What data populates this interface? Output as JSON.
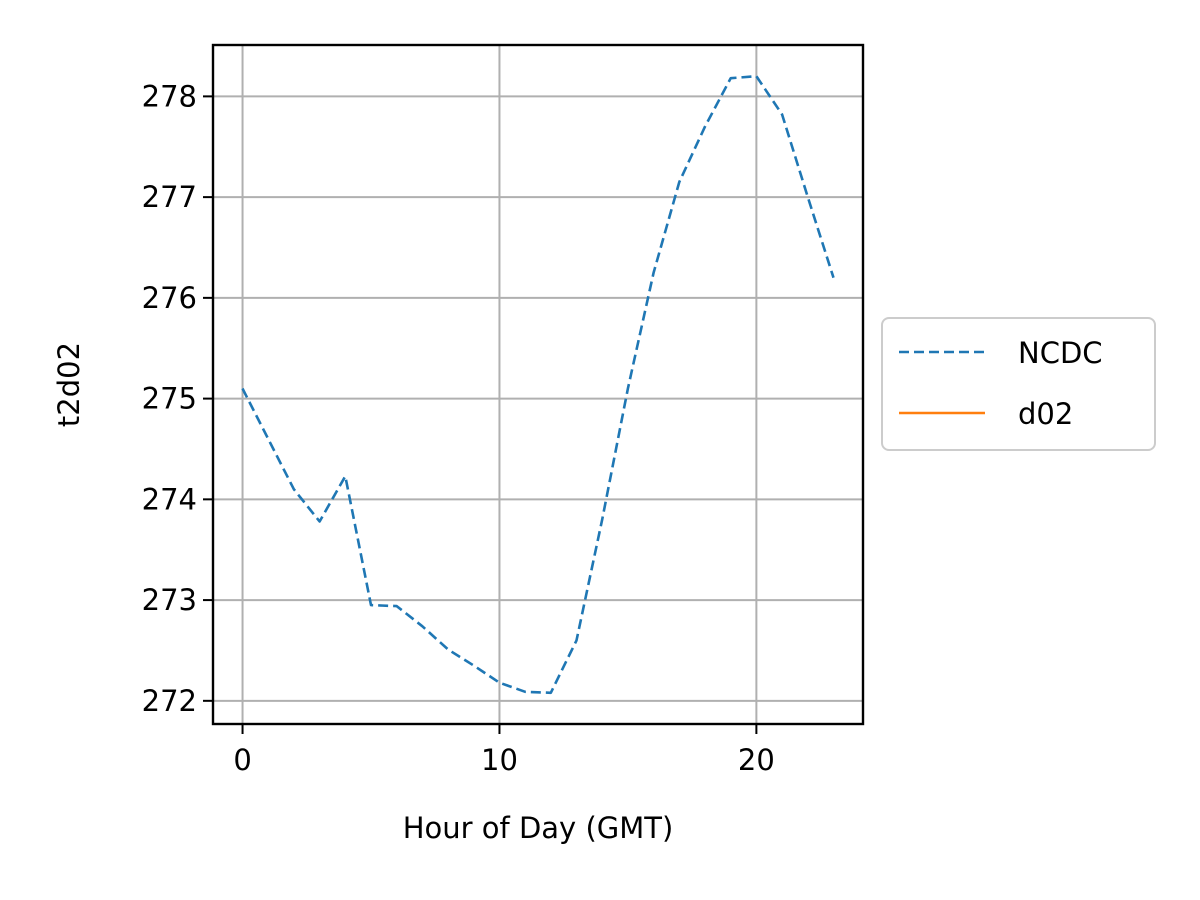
{
  "chart_data": {
    "type": "line",
    "title": "",
    "xlabel": "Hour of Day (GMT)",
    "ylabel": "t2d02",
    "xlim": [
      -1.15,
      24.15
    ],
    "ylim": [
      271.77,
      278.51
    ],
    "xticks": [
      0,
      10,
      20
    ],
    "yticks": [
      272,
      273,
      274,
      275,
      276,
      277,
      278
    ],
    "grid": true,
    "legend_position": "center-right outside",
    "series": [
      {
        "name": "NCDC",
        "color": "#1f77b4",
        "linestyle": "dashed",
        "x": [
          0,
          1,
          2,
          3,
          4,
          5,
          6,
          7,
          8,
          9,
          10,
          11,
          12,
          13,
          14,
          15,
          16,
          17,
          18,
          19,
          20,
          21,
          22,
          23
        ],
        "y": [
          275.1,
          274.6,
          274.1,
          273.78,
          274.23,
          272.95,
          272.94,
          272.74,
          272.51,
          272.35,
          272.18,
          272.09,
          272.08,
          272.6,
          273.8,
          275.1,
          276.25,
          277.15,
          277.7,
          278.18,
          278.2,
          277.82,
          277.0,
          276.2
        ]
      },
      {
        "name": "d02",
        "color": "#ff7f0e",
        "linestyle": "solid",
        "x": [],
        "y": []
      }
    ]
  }
}
